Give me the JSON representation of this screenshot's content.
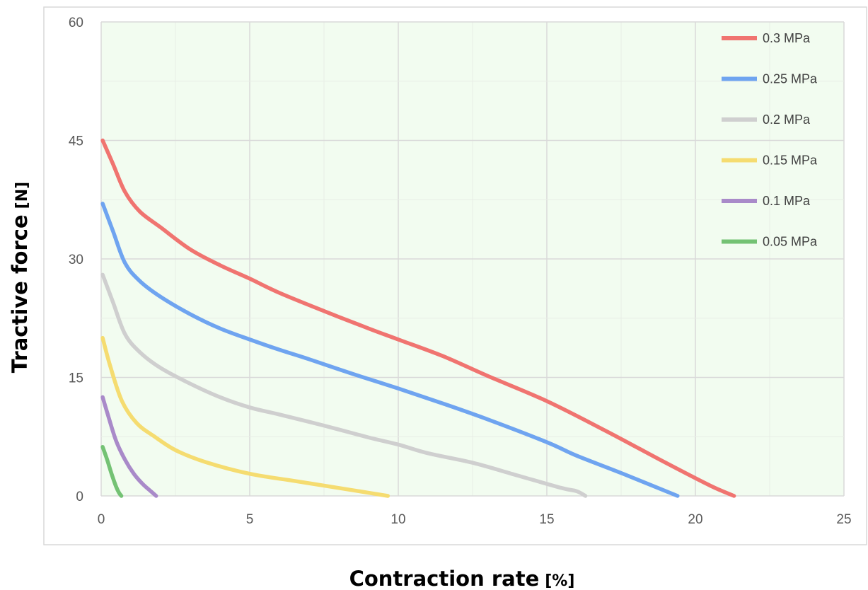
{
  "chart_data": {
    "type": "line",
    "title": "",
    "xlabel": "Contraction rate",
    "xlabel_unit": "[%]",
    "ylabel": "Tractive force",
    "ylabel_unit": "[N]",
    "xlim": [
      0,
      25
    ],
    "ylim": [
      0,
      60
    ],
    "x_ticks": [
      "0",
      "5",
      "10",
      "15",
      "20",
      "25"
    ],
    "y_ticks": [
      "0",
      "15",
      "30",
      "45",
      "60"
    ],
    "grid": true,
    "legend_position": "top-right",
    "plot_background": "#f2fcf0",
    "series": [
      {
        "name": "0.3  MPa",
        "color": "#f07470",
        "x": [
          0.05,
          0.4,
          0.8,
          1.3,
          2.0,
          3.0,
          4.0,
          5.0,
          6.0,
          7.5,
          9.0,
          10.0,
          11.5,
          13.0,
          15.0,
          17.0,
          19.0,
          20.5,
          21.3
        ],
        "y": [
          45,
          42,
          38.5,
          36,
          34,
          31.2,
          29.2,
          27.5,
          25.7,
          23.4,
          21.2,
          19.8,
          17.7,
          15.2,
          12,
          8.2,
          4.2,
          1.3,
          0
        ]
      },
      {
        "name": "0.25 MPa",
        "color": "#6fa4f0",
        "x": [
          0.05,
          0.4,
          0.8,
          1.3,
          2.0,
          3.0,
          4.0,
          5.0,
          6.0,
          7.0,
          8.5,
          10.0,
          11.5,
          13.0,
          15.0,
          16.0,
          17.5,
          19.4
        ],
        "y": [
          37,
          33.5,
          29.5,
          27.2,
          25.2,
          23,
          21.2,
          19.8,
          18.5,
          17.3,
          15.4,
          13.6,
          11.7,
          9.7,
          6.8,
          5.1,
          2.9,
          0
        ]
      },
      {
        "name": "0.2  MPa",
        "color": "#cfcfcf",
        "x": [
          0.05,
          0.4,
          0.8,
          1.3,
          2.0,
          3.0,
          4.0,
          5.0,
          6.0,
          7.5,
          9.0,
          10.0,
          11.0,
          12.5,
          14.0,
          15.5,
          16.0,
          16.3
        ],
        "y": [
          28,
          24.5,
          20.5,
          18.2,
          16.2,
          14.2,
          12.5,
          11.2,
          10.3,
          8.9,
          7.4,
          6.5,
          5.4,
          4.2,
          2.6,
          1.0,
          0.6,
          0
        ]
      },
      {
        "name": "0.15 MPa",
        "color": "#f5dc70",
        "x": [
          0.05,
          0.3,
          0.7,
          1.2,
          1.8,
          2.5,
          3.5,
          5.0,
          6.5,
          8.0,
          9.0,
          9.65
        ],
        "y": [
          20,
          16.5,
          12,
          9.2,
          7.5,
          5.8,
          4.3,
          2.8,
          1.9,
          1.0,
          0.4,
          0
        ]
      },
      {
        "name": "0.1  MPa",
        "color": "#a98ac9",
        "x": [
          0.05,
          0.2,
          0.5,
          0.8,
          1.1,
          1.4,
          1.7,
          1.85
        ],
        "y": [
          12.5,
          10.6,
          7,
          4.6,
          2.8,
          1.5,
          0.5,
          0
        ]
      },
      {
        "name": "0.05 MPa",
        "color": "#74c274",
        "x": [
          0.05,
          0.2,
          0.35,
          0.5,
          0.6,
          0.68
        ],
        "y": [
          6.2,
          4.6,
          2.8,
          1.2,
          0.4,
          0
        ]
      }
    ]
  }
}
